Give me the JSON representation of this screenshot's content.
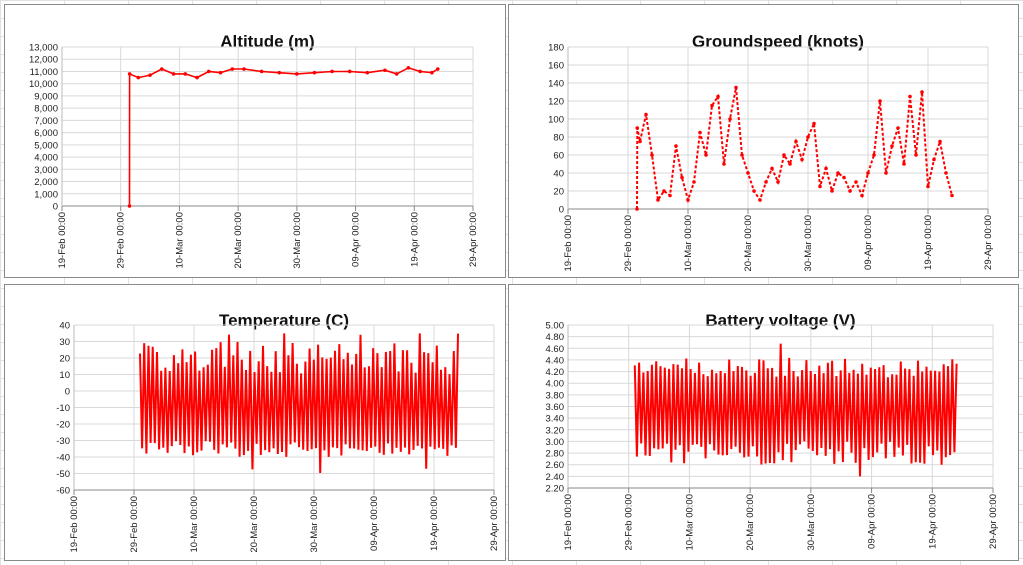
{
  "chart_data": [
    {
      "type": "line",
      "title": "Altitude (m)",
      "xlabel": "",
      "ylabel": "",
      "x_ticks": [
        "19-Feb 00:00",
        "29-Feb 00:00",
        "10-Mar 00:00",
        "20-Mar 00:00",
        "30-Mar 00:00",
        "09-Apr 00:00",
        "19-Apr 00:00",
        "29-Apr 00:00"
      ],
      "y_ticks": [
        "0",
        "1,000",
        "2,000",
        "3,000",
        "4,000",
        "5,000",
        "6,000",
        "7,000",
        "8,000",
        "9,000",
        "10,000",
        "11,000",
        "12,000",
        "13,000"
      ],
      "ylim": [
        0,
        13000
      ],
      "grid": true,
      "color": "#ff0000",
      "series": [
        {
          "values": [
            {
              "x": "2016-03-01 12:00",
              "y": 0
            },
            {
              "x": "2016-03-01 12:30",
              "y": 10800
            },
            {
              "x": "2016-03-03",
              "y": 10500
            },
            {
              "x": "2016-03-05",
              "y": 10700
            },
            {
              "x": "2016-03-07",
              "y": 11200
            },
            {
              "x": "2016-03-09",
              "y": 10800
            },
            {
              "x": "2016-03-11",
              "y": 10800
            },
            {
              "x": "2016-03-13",
              "y": 10500
            },
            {
              "x": "2016-03-15",
              "y": 11000
            },
            {
              "x": "2016-03-17",
              "y": 10900
            },
            {
              "x": "2016-03-19",
              "y": 11200
            },
            {
              "x": "2016-03-21",
              "y": 11200
            },
            {
              "x": "2016-03-24",
              "y": 11000
            },
            {
              "x": "2016-03-27",
              "y": 10900
            },
            {
              "x": "2016-03-30",
              "y": 10800
            },
            {
              "x": "2016-04-02",
              "y": 10900
            },
            {
              "x": "2016-04-05",
              "y": 11000
            },
            {
              "x": "2016-04-08",
              "y": 11000
            },
            {
              "x": "2016-04-11",
              "y": 10900
            },
            {
              "x": "2016-04-14",
              "y": 11100
            },
            {
              "x": "2016-04-16",
              "y": 10800
            },
            {
              "x": "2016-04-18",
              "y": 11300
            },
            {
              "x": "2016-04-20",
              "y": 11000
            },
            {
              "x": "2016-04-22",
              "y": 10900
            },
            {
              "x": "2016-04-23",
              "y": 11200
            }
          ]
        }
      ]
    },
    {
      "type": "line",
      "title": "Groundspeed (knots)",
      "xlabel": "",
      "ylabel": "",
      "x_ticks": [
        "19-Feb 00:00",
        "29-Feb 00:00",
        "10-Mar 00:00",
        "20-Mar 00:00",
        "30-Mar 00:00",
        "09-Apr 00:00",
        "19-Apr 00:00",
        "29-Apr 00:00"
      ],
      "y_ticks": [
        "0",
        "20",
        "40",
        "60",
        "80",
        "100",
        "120",
        "140",
        "160",
        "180"
      ],
      "ylim": [
        0,
        180
      ],
      "grid": true,
      "color": "#ff0000",
      "series": [
        {
          "values": [
            {
              "x": "2016-03-01 12:00",
              "y": 0
            },
            {
              "x": "2016-03-01 13:00",
              "y": 90
            },
            {
              "x": "2016-03-02",
              "y": 75
            },
            {
              "x": "2016-03-03",
              "y": 105
            },
            {
              "x": "2016-03-04",
              "y": 60
            },
            {
              "x": "2016-03-05",
              "y": 10
            },
            {
              "x": "2016-03-06",
              "y": 20
            },
            {
              "x": "2016-03-07",
              "y": 15
            },
            {
              "x": "2016-03-08",
              "y": 70
            },
            {
              "x": "2016-03-09",
              "y": 35
            },
            {
              "x": "2016-03-10",
              "y": 10
            },
            {
              "x": "2016-03-11",
              "y": 30
            },
            {
              "x": "2016-03-12",
              "y": 85
            },
            {
              "x": "2016-03-13",
              "y": 60
            },
            {
              "x": "2016-03-14",
              "y": 115
            },
            {
              "x": "2016-03-15",
              "y": 125
            },
            {
              "x": "2016-03-16",
              "y": 50
            },
            {
              "x": "2016-03-17",
              "y": 100
            },
            {
              "x": "2016-03-18",
              "y": 135
            },
            {
              "x": "2016-03-19",
              "y": 60
            },
            {
              "x": "2016-03-20",
              "y": 40
            },
            {
              "x": "2016-03-21",
              "y": 20
            },
            {
              "x": "2016-03-22",
              "y": 10
            },
            {
              "x": "2016-03-23",
              "y": 30
            },
            {
              "x": "2016-03-24",
              "y": 45
            },
            {
              "x": "2016-03-25",
              "y": 30
            },
            {
              "x": "2016-03-26",
              "y": 60
            },
            {
              "x": "2016-03-27",
              "y": 50
            },
            {
              "x": "2016-03-28",
              "y": 75
            },
            {
              "x": "2016-03-29",
              "y": 55
            },
            {
              "x": "2016-03-30",
              "y": 80
            },
            {
              "x": "2016-03-31",
              "y": 95
            },
            {
              "x": "2016-04-01",
              "y": 25
            },
            {
              "x": "2016-04-02",
              "y": 45
            },
            {
              "x": "2016-04-03",
              "y": 20
            },
            {
              "x": "2016-04-04",
              "y": 40
            },
            {
              "x": "2016-04-05",
              "y": 35
            },
            {
              "x": "2016-04-06",
              "y": 20
            },
            {
              "x": "2016-04-07",
              "y": 30
            },
            {
              "x": "2016-04-08",
              "y": 15
            },
            {
              "x": "2016-04-09",
              "y": 40
            },
            {
              "x": "2016-04-10",
              "y": 60
            },
            {
              "x": "2016-04-11",
              "y": 120
            },
            {
              "x": "2016-04-12",
              "y": 40
            },
            {
              "x": "2016-04-13",
              "y": 70
            },
            {
              "x": "2016-04-14",
              "y": 90
            },
            {
              "x": "2016-04-15",
              "y": 50
            },
            {
              "x": "2016-04-16",
              "y": 125
            },
            {
              "x": "2016-04-17",
              "y": 60
            },
            {
              "x": "2016-04-18",
              "y": 130
            },
            {
              "x": "2016-04-19",
              "y": 25
            },
            {
              "x": "2016-04-20",
              "y": 55
            },
            {
              "x": "2016-04-21",
              "y": 75
            },
            {
              "x": "2016-04-22",
              "y": 40
            },
            {
              "x": "2016-04-23",
              "y": 15
            }
          ]
        }
      ]
    },
    {
      "type": "line",
      "title": "Temperature (C)",
      "xlabel": "",
      "ylabel": "",
      "x_ticks": [
        "19-Feb 00:00",
        "29-Feb 00:00",
        "10-Mar 00:00",
        "20-Mar 00:00",
        "30-Mar 00:00",
        "09-Apr 00:00",
        "19-Apr 00:00",
        "29-Apr 00:00"
      ],
      "y_ticks": [
        "-60",
        "-50",
        "-40",
        "-30",
        "-20",
        "-10",
        "0",
        "10",
        "20",
        "30",
        "40"
      ],
      "ylim": [
        -60,
        40
      ],
      "grid": true,
      "color": "#ff0000",
      "series": [
        {
          "oscillating": true,
          "high_range": [
            10,
            30
          ],
          "low_range": [
            -40,
            -30
          ],
          "spike_max": 35,
          "spike_min": -50,
          "x_start": "2016-03-01",
          "x_end": "2016-04-23"
        }
      ]
    },
    {
      "type": "line",
      "title": "Battery voltage (V)",
      "xlabel": "",
      "ylabel": "",
      "x_ticks": [
        "19-Feb 00:00",
        "29-Feb 00:00",
        "10-Mar 00:00",
        "20-Mar 00:00",
        "30-Mar 00:00",
        "09-Apr 00:00",
        "19-Apr 00:00",
        "29-Apr 00:00"
      ],
      "y_ticks": [
        "2.20",
        "2.40",
        "2.60",
        "2.80",
        "3.00",
        "3.20",
        "3.40",
        "3.60",
        "3.80",
        "4.00",
        "4.20",
        "4.40",
        "4.60",
        "4.80",
        "5.00"
      ],
      "ylim": [
        2.2,
        5.0
      ],
      "grid": true,
      "color": "#ff0000",
      "series": [
        {
          "oscillating": true,
          "high_range": [
            4.1,
            4.45
          ],
          "low_range": [
            2.6,
            3.0
          ],
          "spike_max": 4.7,
          "spike_min": 2.4,
          "x_start": "2016-03-01",
          "x_end": "2016-04-23"
        }
      ]
    }
  ]
}
